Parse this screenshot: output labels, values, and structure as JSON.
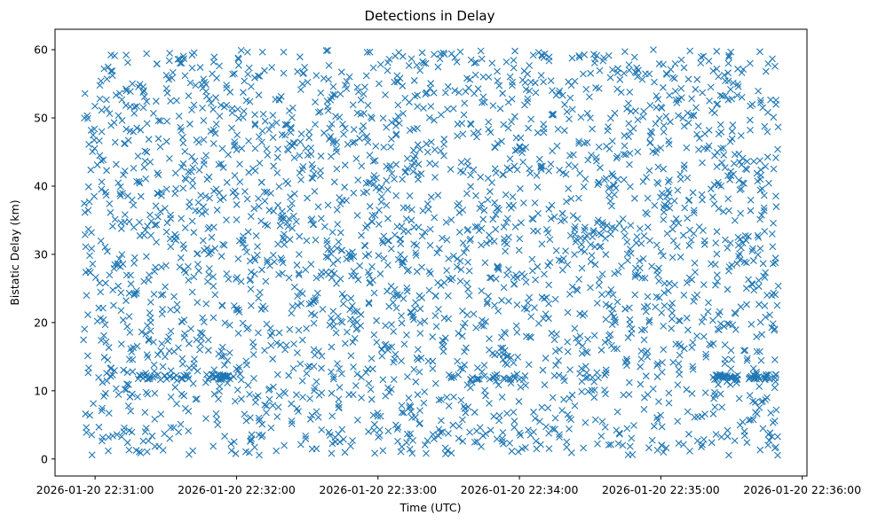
{
  "chart_data": {
    "type": "scatter",
    "title": "Detections in Delay",
    "xlabel": "Time (UTC)",
    "ylabel": "Bistatic Delay (km)",
    "marker": "x",
    "color": "#1f77b4",
    "grid": false,
    "legend": "none",
    "x_range": [
      "2026-01-20 22:30:43",
      "2026-01-20 22:36:02"
    ],
    "ylim": [
      -2.5,
      63
    ],
    "x_ticks": [
      "2026-01-20 22:31:00",
      "2026-01-20 22:32:00",
      "2026-01-20 22:33:00",
      "2026-01-20 22:34:00",
      "2026-01-20 22:35:00",
      "2026-01-20 22:36:00"
    ],
    "y_ticks": [
      "0",
      "10",
      "20",
      "30",
      "40",
      "50",
      "60"
    ],
    "approx_point_count": 2900,
    "x_time_span": [
      "2026-01-20 22:30:55",
      "2026-01-20 22:35:50"
    ],
    "y_value_span": [
      0.5,
      60
    ],
    "dense_bands": [
      {
        "x_start": "2026-01-20 22:31:17",
        "x_end": "2026-01-20 22:31:40",
        "y": 12
      },
      {
        "x_start": "2026-01-20 22:31:47",
        "x_end": "2026-01-20 22:31:58",
        "y": 12
      },
      {
        "x_start": "2026-01-20 22:33:30",
        "x_end": "2026-01-20 22:34:03",
        "y": 12
      },
      {
        "x_start": "2026-01-20 22:35:20",
        "x_end": "2026-01-20 22:35:33",
        "y": 12
      },
      {
        "x_start": "2026-01-20 22:35:37",
        "x_end": "2026-01-20 22:35:49",
        "y": 12
      }
    ]
  }
}
